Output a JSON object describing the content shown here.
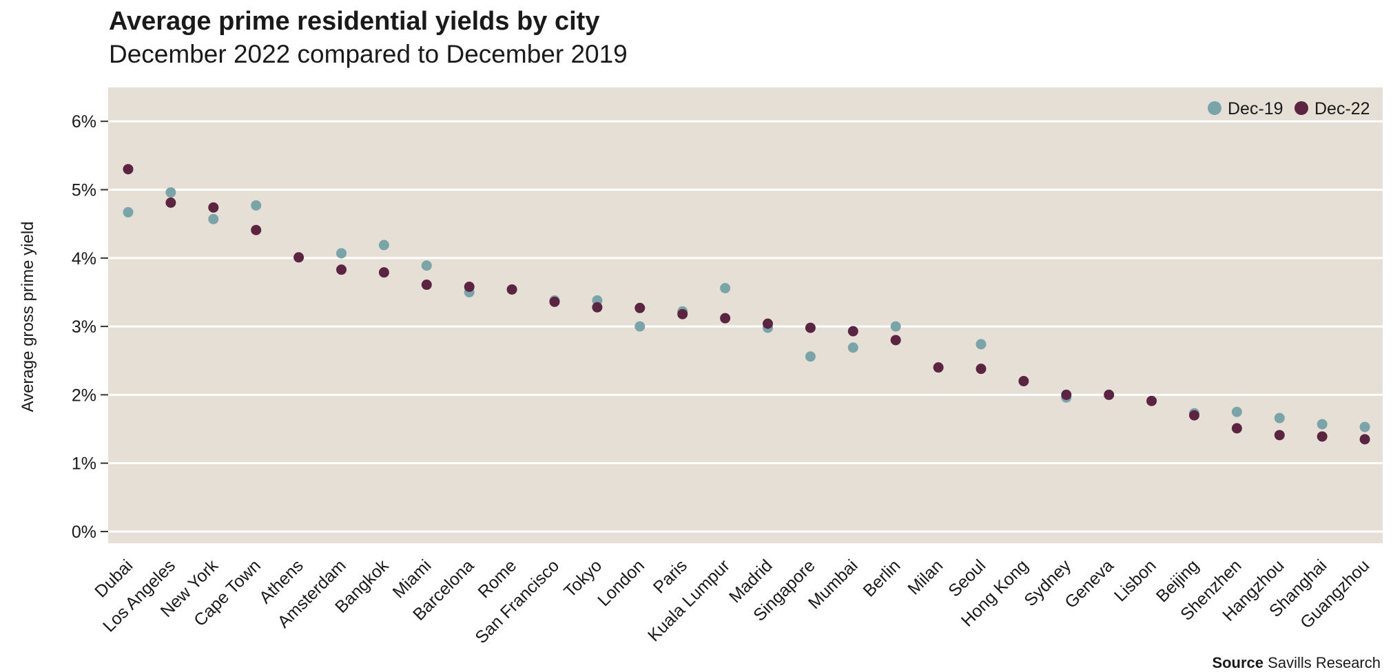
{
  "title": "Average prime residential yields by city",
  "subtitle": "December 2022 compared to December 2019",
  "source": {
    "label": "Source",
    "text": "Savills Research"
  },
  "colors": {
    "plot_background": "#e5dfd6",
    "gridline": "#ffffff",
    "dec19": "#7aa5a8",
    "dec22": "#5b2542",
    "text": "#1a1a1a"
  },
  "chart_data": {
    "type": "scatter",
    "title": "Average prime residential yields by city",
    "subtitle": "December 2022 compared to December 2019",
    "xlabel": "",
    "ylabel": "Average gross prime yield",
    "ylim": [
      0,
      6
    ],
    "yticks": [
      0,
      1,
      2,
      3,
      4,
      5,
      6
    ],
    "ytick_labels": [
      "0%",
      "1%",
      "2%",
      "3%",
      "4%",
      "5%",
      "6%"
    ],
    "grid": true,
    "legend": "top-right",
    "categories": [
      "Dubai",
      "Los Angeles",
      "New York",
      "Cape Town",
      "Athens",
      "Amsterdam",
      "Bangkok",
      "Miami",
      "Barcelona",
      "Rome",
      "San Francisco",
      "Tokyo",
      "London",
      "Paris",
      "Kuala Lumpur",
      "Madrid",
      "Singapore",
      "Mumbai",
      "Berlin",
      "Milan",
      "Seoul",
      "Hong Kong",
      "Sydney",
      "Geneva",
      "Lisbon",
      "Beijing",
      "Shenzhen",
      "Hangzhou",
      "Shanghai",
      "Guangzhou"
    ],
    "series": [
      {
        "name": "Dec-19",
        "color": "#7aa5a8",
        "values": [
          4.67,
          4.96,
          4.57,
          4.77,
          null,
          4.07,
          4.19,
          3.89,
          3.5,
          null,
          3.38,
          3.38,
          3.0,
          3.22,
          3.56,
          2.98,
          2.56,
          2.69,
          3.0,
          null,
          2.74,
          null,
          1.96,
          null,
          null,
          1.73,
          1.75,
          1.66,
          1.57,
          1.53
        ]
      },
      {
        "name": "Dec-22",
        "color": "#5b2542",
        "values": [
          5.3,
          4.81,
          4.74,
          4.41,
          4.01,
          3.83,
          3.79,
          3.61,
          3.58,
          3.54,
          3.36,
          3.28,
          3.27,
          3.18,
          3.12,
          3.04,
          2.98,
          2.93,
          2.8,
          2.4,
          2.38,
          2.2,
          2.0,
          2.0,
          1.91,
          1.7,
          1.51,
          1.41,
          1.39,
          1.35
        ]
      }
    ]
  }
}
